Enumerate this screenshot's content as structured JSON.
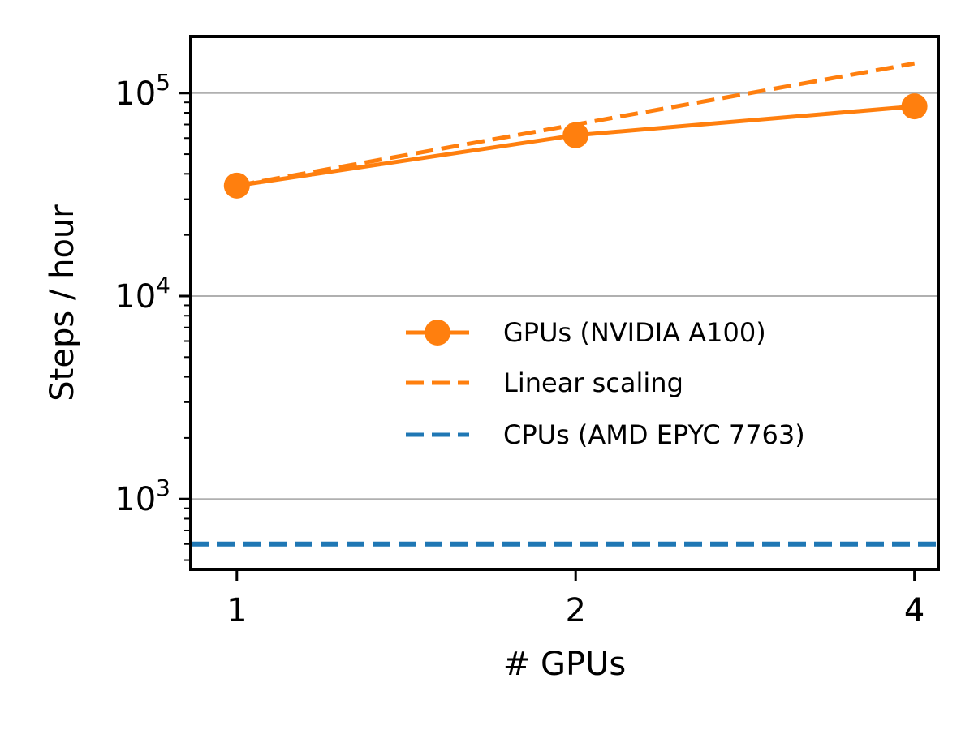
{
  "chart_data": {
    "type": "line",
    "xlabel": "# GPUs",
    "ylabel": "Steps / hour",
    "x_scale": "log2",
    "y_scale": "log10",
    "x_ticks": [
      1,
      2,
      4
    ],
    "x_tick_labels": [
      "1",
      "2",
      "4"
    ],
    "y_ticks": [
      1000,
      10000,
      100000
    ],
    "y_tick_labels": [
      {
        "base": "10",
        "exp": "3"
      },
      {
        "base": "10",
        "exp": "4"
      },
      {
        "base": "10",
        "exp": "5"
      }
    ],
    "xlim": [
      0.91,
      4.2
    ],
    "ylim": [
      450,
      190000
    ],
    "grid": "horizontal major",
    "legend_position": "center-right",
    "series": [
      {
        "name": "GPUs (NVIDIA A100)",
        "color": "#ff7f0e",
        "style": "solid",
        "marker": "circle",
        "x": [
          1,
          2,
          4
        ],
        "y": [
          35000,
          62000,
          86000
        ]
      },
      {
        "name": "Linear scaling",
        "color": "#ff7f0e",
        "style": "dashed",
        "marker": "none",
        "x": [
          1,
          2,
          4.0
        ],
        "y": [
          35000,
          70000,
          140000
        ]
      },
      {
        "name": "CPUs (AMD EPYC 7763)",
        "color": "#1f77b4",
        "style": "dashed",
        "marker": "none",
        "horizontal": true,
        "y_value": 600
      }
    ]
  }
}
